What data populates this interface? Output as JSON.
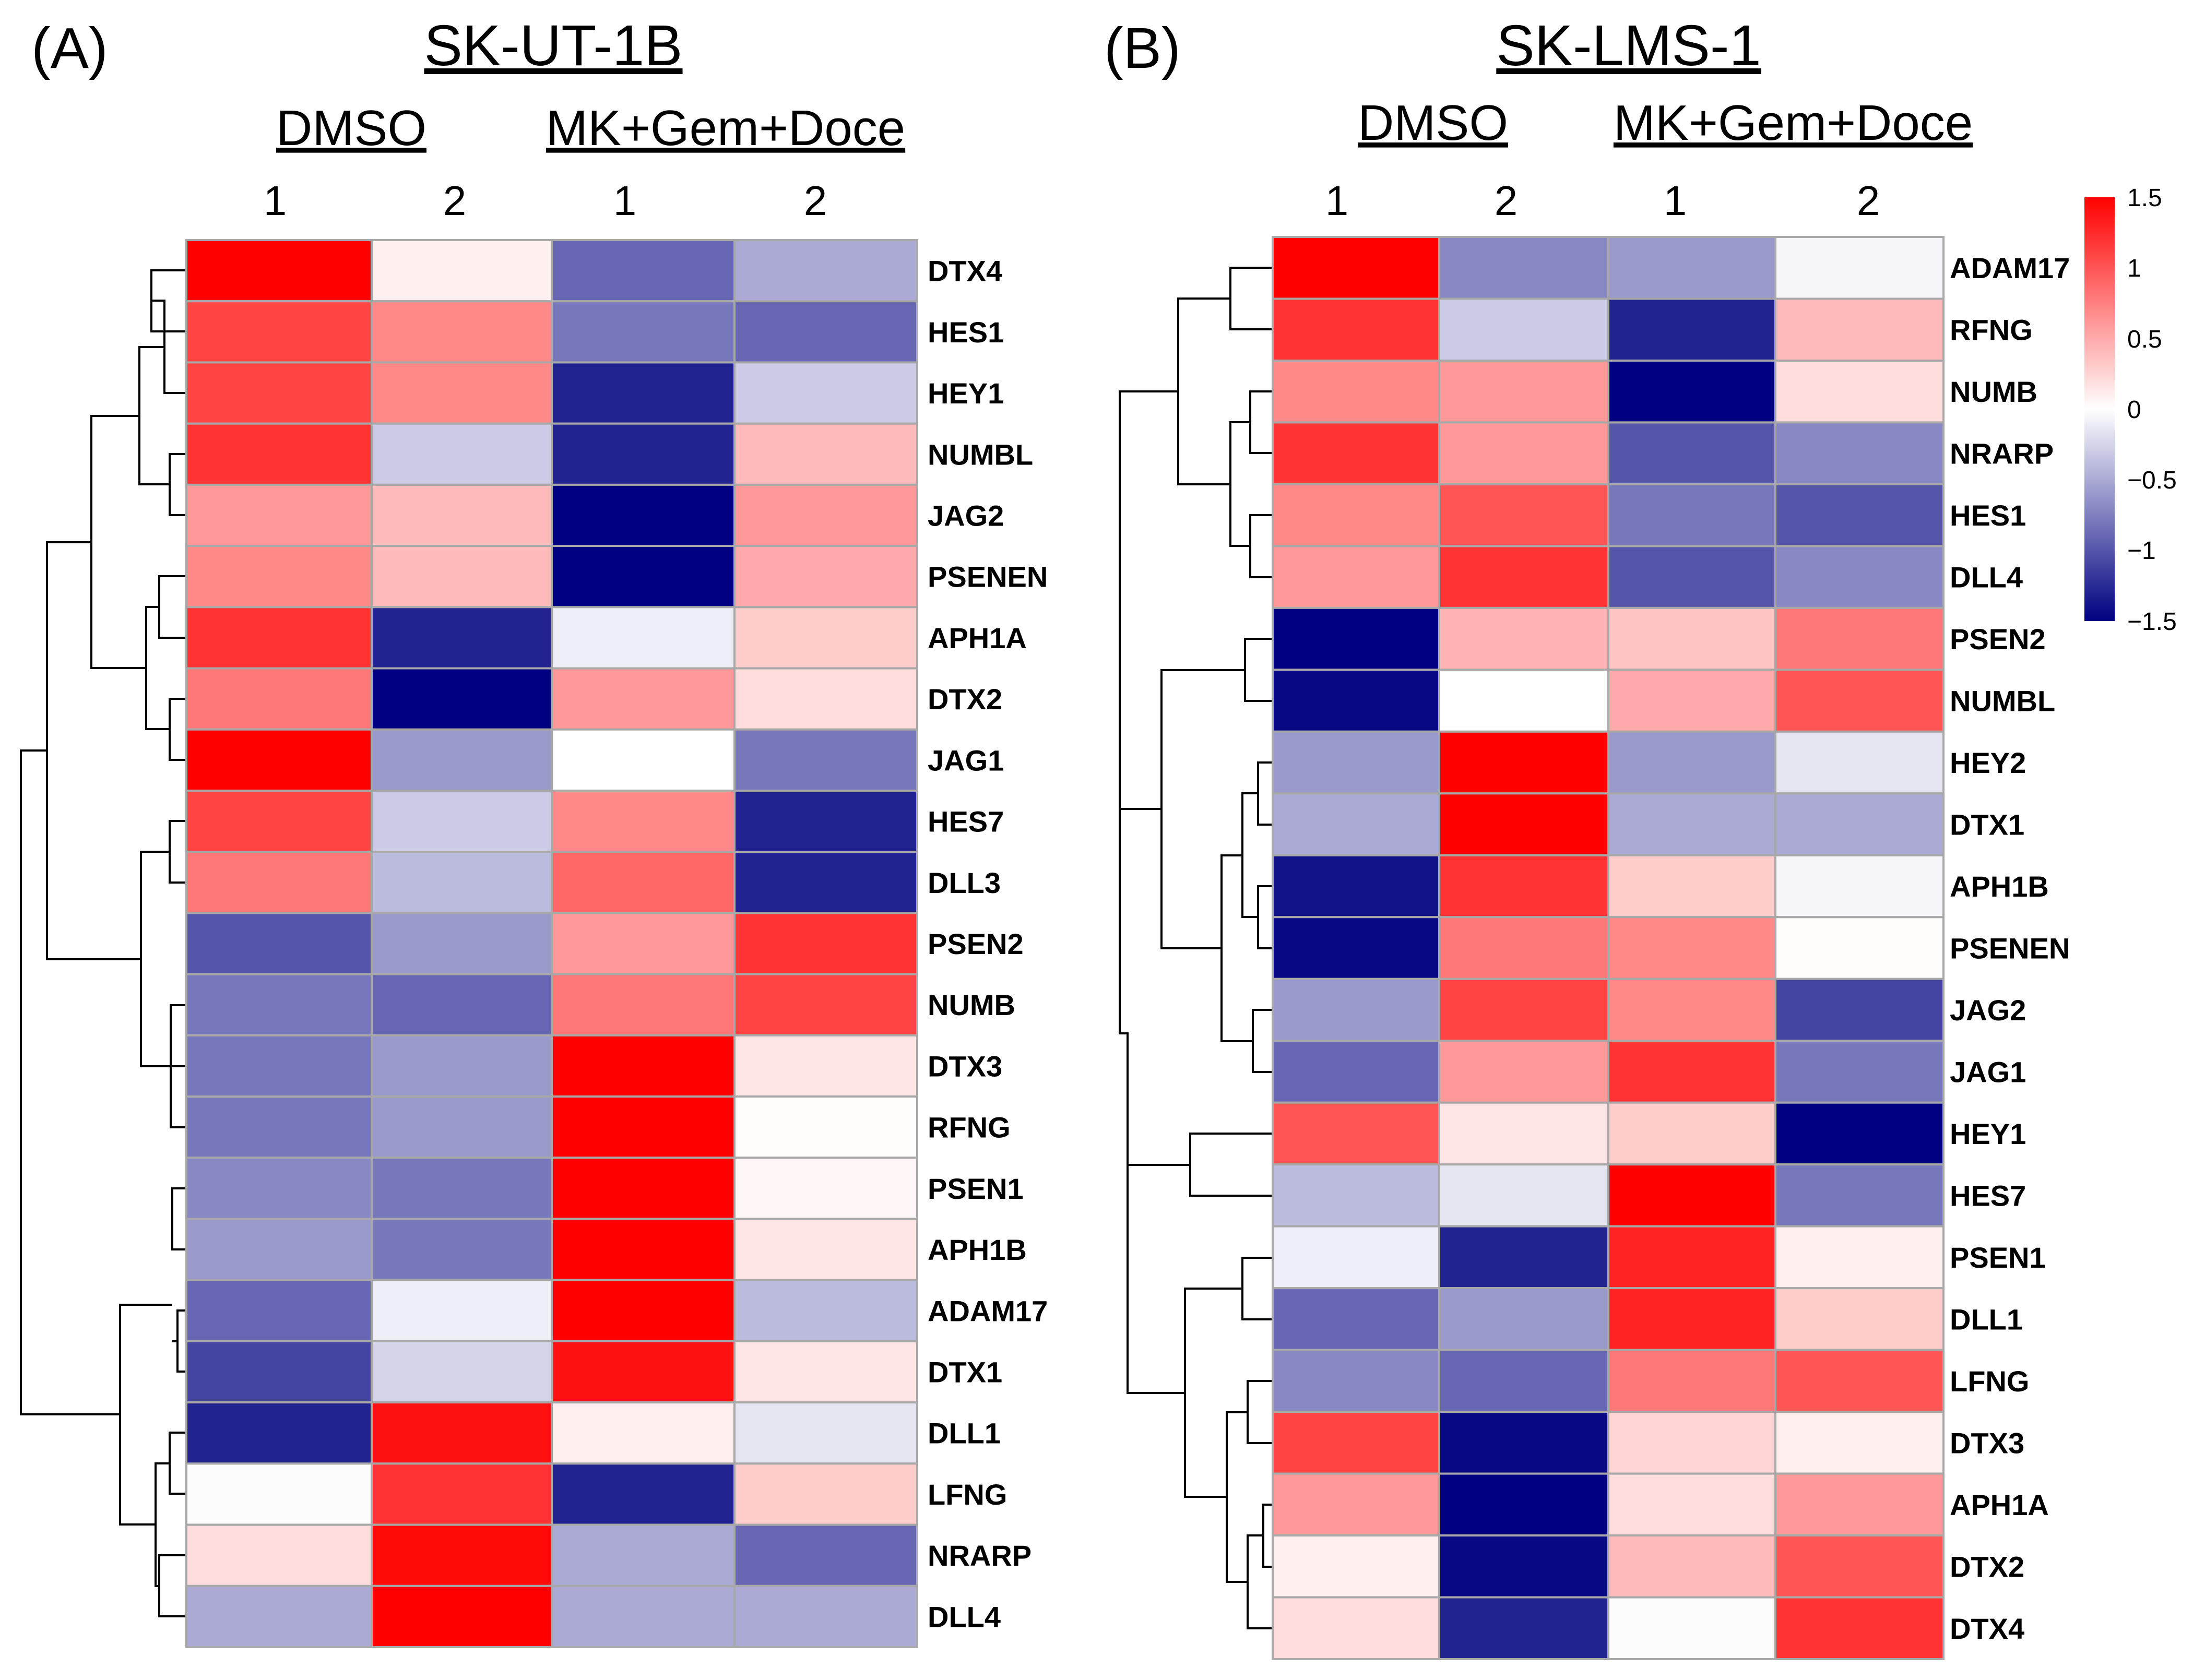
{
  "chart_data": [
    {
      "type": "heatmap",
      "panel_label": "(A)",
      "title": "SK-UT-1B",
      "groups": [
        "DMSO",
        "MK+Gem+Doce"
      ],
      "columns": [
        "1",
        "2",
        "1",
        "2"
      ],
      "rows": [
        "DTX4",
        "HES1",
        "HEY1",
        "NUMBL",
        "JAG2",
        "PSENEN",
        "APH1A",
        "DTX2",
        "JAG1",
        "HES7",
        "DLL3",
        "PSEN2",
        "NUMB",
        "DTX3",
        "RFNG",
        "PSEN1",
        "APH1B",
        "ADAM17",
        "DTX1",
        "DLL1",
        "LFNG",
        "NRARP",
        "DLL4"
      ],
      "values": [
        [
          1.5,
          0.1,
          -0.9,
          -0.5
        ],
        [
          1.1,
          0.7,
          -0.8,
          -0.9
        ],
        [
          1.1,
          0.7,
          -1.3,
          -0.3
        ],
        [
          1.2,
          -0.3,
          -1.3,
          0.4
        ],
        [
          0.6,
          0.4,
          -1.5,
          0.6
        ],
        [
          0.7,
          0.4,
          -1.5,
          0.5
        ],
        [
          1.2,
          -1.3,
          -0.1,
          0.3
        ],
        [
          0.8,
          -1.5,
          0.6,
          0.2
        ],
        [
          1.5,
          -0.6,
          0.0,
          -0.8
        ],
        [
          1.1,
          -0.3,
          0.7,
          -1.3
        ],
        [
          0.8,
          -0.4,
          0.9,
          -1.3
        ],
        [
          -1.0,
          -0.6,
          0.6,
          1.2
        ],
        [
          -0.8,
          -0.9,
          0.8,
          1.1
        ],
        [
          -0.8,
          -0.6,
          1.5,
          0.15
        ],
        [
          -0.8,
          -0.6,
          1.5,
          0.02
        ],
        [
          -0.7,
          -0.8,
          1.5,
          0.05
        ],
        [
          -0.6,
          -0.8,
          1.5,
          0.15
        ],
        [
          -0.9,
          -0.1,
          1.5,
          -0.4
        ],
        [
          -1.1,
          -0.25,
          1.4,
          0.15
        ],
        [
          -1.3,
          1.4,
          0.1,
          -0.15
        ],
        [
          -0.02,
          1.2,
          -1.3,
          0.3
        ],
        [
          0.2,
          1.45,
          -0.5,
          -0.9
        ],
        [
          -0.5,
          1.55,
          -0.5,
          -0.5
        ]
      ],
      "color_scale": {
        "min": -1.5,
        "max": 1.5,
        "low": "#000080",
        "mid": "#ffffff",
        "high": "#ff0000"
      }
    },
    {
      "type": "heatmap",
      "panel_label": "(B)",
      "title": "SK-LMS-1",
      "groups": [
        "DMSO",
        "MK+Gem+Doce"
      ],
      "columns": [
        "1",
        "2",
        "1",
        "2"
      ],
      "rows": [
        "ADAM17",
        "RFNG",
        "NUMB",
        "NRARP",
        "HES1",
        "DLL4",
        "PSEN2",
        "NUMBL",
        "HEY2",
        "DTX1",
        "APH1B",
        "PSENEN",
        "JAG2",
        "JAG1",
        "HEY1",
        "HES7",
        "PSEN1",
        "DLL1",
        "LFNG",
        "DTX3",
        "APH1A",
        "DTX2",
        "DTX4"
      ],
      "values": [
        [
          1.5,
          -0.7,
          -0.6,
          -0.05
        ],
        [
          1.2,
          -0.3,
          -1.3,
          0.4
        ],
        [
          0.7,
          0.6,
          -1.55,
          0.2
        ],
        [
          1.2,
          0.6,
          -1.0,
          -0.7
        ],
        [
          0.7,
          1.0,
          -0.8,
          -1.0
        ],
        [
          0.6,
          1.2,
          -1.0,
          -0.7
        ],
        [
          -1.5,
          0.45,
          0.35,
          0.8
        ],
        [
          -1.45,
          0.0,
          0.5,
          1.0
        ],
        [
          -0.6,
          1.55,
          -0.6,
          -0.15
        ],
        [
          -0.5,
          1.55,
          -0.5,
          -0.5
        ],
        [
          -1.4,
          1.2,
          0.3,
          -0.05
        ],
        [
          -1.45,
          0.8,
          0.7,
          0.02
        ],
        [
          -0.6,
          1.1,
          0.7,
          -1.1
        ],
        [
          -0.9,
          0.6,
          1.2,
          -0.8
        ],
        [
          1.0,
          0.15,
          0.3,
          -1.5
        ],
        [
          -0.4,
          -0.15,
          1.55,
          -0.8
        ],
        [
          -0.1,
          -1.3,
          1.3,
          0.1
        ],
        [
          -0.9,
          -0.6,
          1.3,
          0.3
        ],
        [
          -0.7,
          -0.9,
          0.8,
          1.0
        ],
        [
          1.1,
          -1.45,
          0.25,
          0.1
        ],
        [
          0.6,
          -1.55,
          0.2,
          0.6
        ],
        [
          0.1,
          -1.45,
          0.4,
          1.0
        ],
        [
          0.2,
          -1.3,
          -0.02,
          1.2
        ]
      ],
      "color_scale": {
        "min": -1.5,
        "max": 1.5,
        "low": "#000080",
        "mid": "#ffffff",
        "high": "#ff0000"
      }
    }
  ],
  "legend": {
    "ticks": [
      "1.5",
      "1",
      "0.5",
      "0",
      "−0.5",
      "−1",
      "−1.5"
    ],
    "tick_values": [
      1.5,
      1,
      0.5,
      0,
      -0.5,
      -1,
      -1.5
    ]
  }
}
